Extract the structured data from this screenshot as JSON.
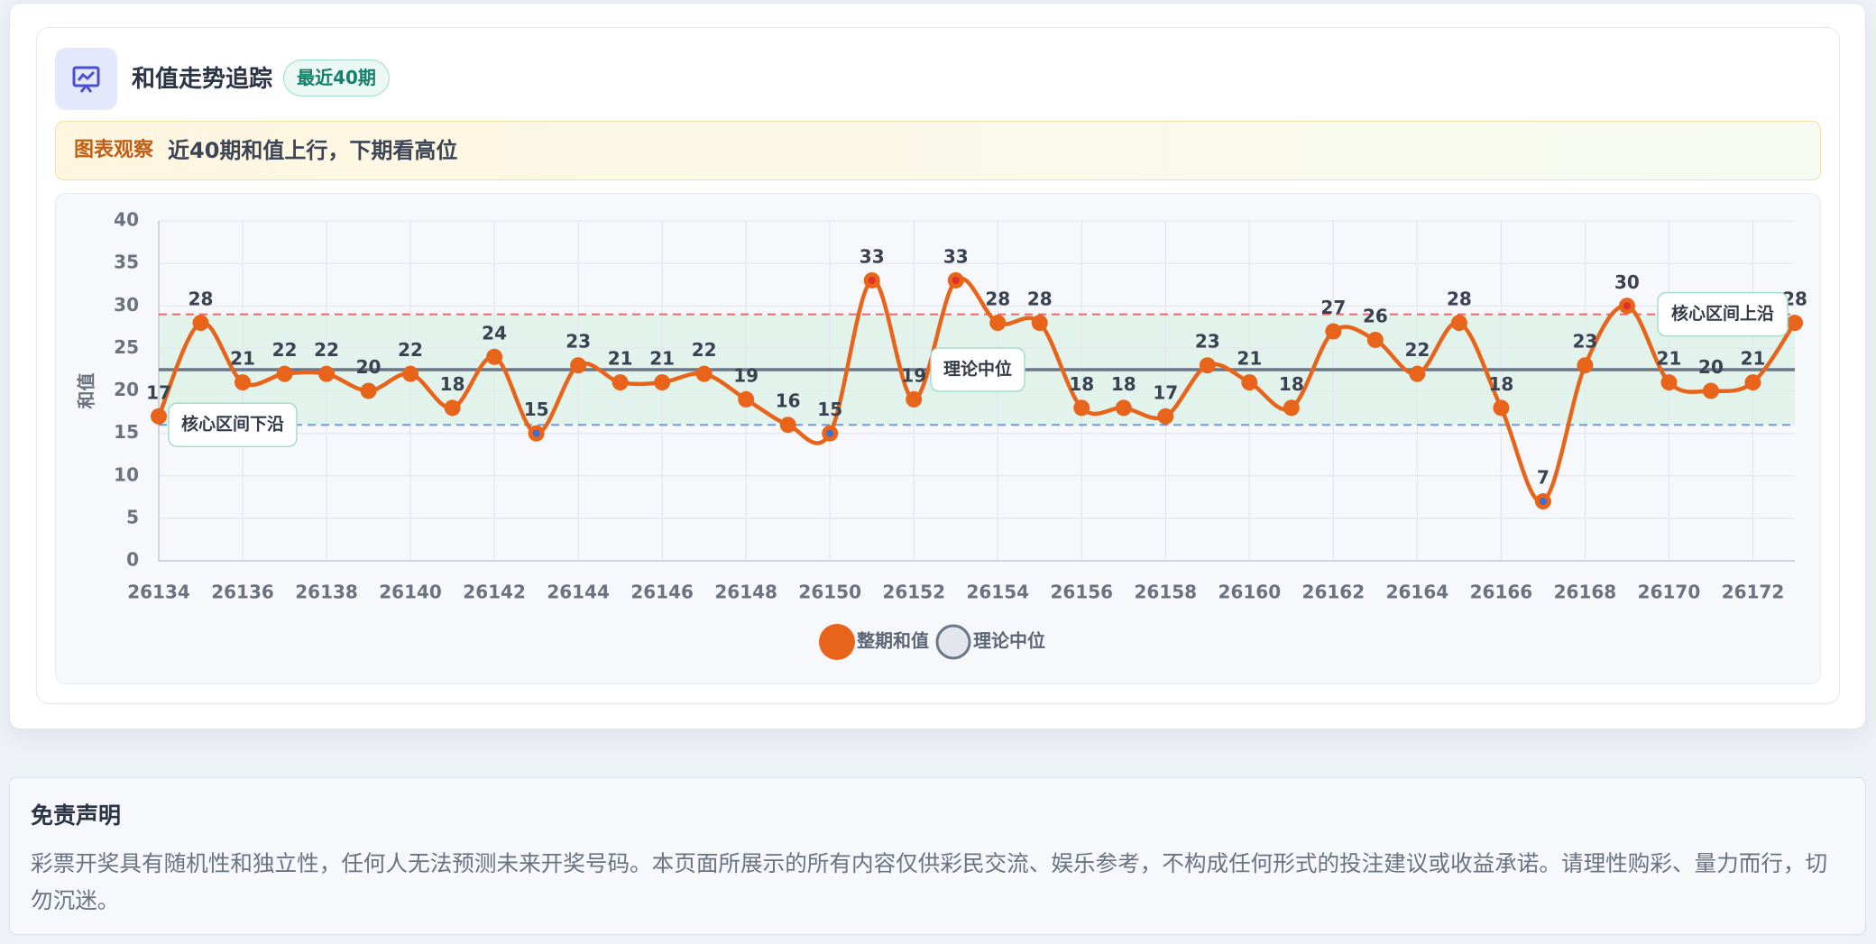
{
  "header": {
    "title": "和值走势追踪",
    "badge": "最近40期"
  },
  "observation": {
    "label": "图表观察",
    "text": "近40期和值上行，下期看高位"
  },
  "chart_data": {
    "type": "line",
    "x": [
      26134,
      26135,
      26136,
      26137,
      26138,
      26139,
      26140,
      26141,
      26142,
      26143,
      26144,
      26145,
      26146,
      26147,
      26148,
      26149,
      26150,
      26151,
      26152,
      26153,
      26154,
      26155,
      26156,
      26157,
      26158,
      26159,
      26160,
      26161,
      26162,
      26163,
      26164,
      26165,
      26166,
      26167,
      26168,
      26169,
      26170,
      26171,
      26172,
      26173
    ],
    "series": [
      {
        "name": "整期和值",
        "color": "#e8641a",
        "values": [
          17,
          28,
          21,
          22,
          22,
          20,
          22,
          18,
          24,
          15,
          23,
          21,
          21,
          22,
          19,
          16,
          15,
          33,
          19,
          33,
          28,
          28,
          18,
          18,
          17,
          23,
          21,
          18,
          27,
          26,
          22,
          28,
          18,
          7,
          23,
          30,
          21,
          20,
          21,
          28
        ]
      }
    ],
    "xlim": [
      26134,
      26173
    ],
    "xticks": [
      26134,
      26136,
      26138,
      26140,
      26142,
      26144,
      26146,
      26148,
      26150,
      26152,
      26154,
      26156,
      26158,
      26160,
      26162,
      26164,
      26166,
      26168,
      26170,
      26172
    ],
    "ylim": [
      0,
      40
    ],
    "yticks": [
      0,
      5,
      10,
      15,
      20,
      25,
      30,
      35,
      40
    ],
    "ylabel": "和值",
    "grid": true,
    "median": {
      "name": "理论中位",
      "value": 22.5,
      "color": "#6b7689"
    },
    "core_band": {
      "upper": {
        "label": "核心区间上沿",
        "value": 29,
        "color": "#e86a6a"
      },
      "lower": {
        "label": "核心区间下沿",
        "value": 16,
        "color": "#6a9de0"
      },
      "fill": "#e2f3ec"
    },
    "legend": "bottom"
  },
  "disclaimer": {
    "title": "免责声明",
    "text": "彩票开奖具有随机性和独立性，任何人无法预测未来开奖号码。本页面所展示的所有内容仅供彩民交流、娱乐参考，不构成任何形式的投注建议或收益承诺。请理性购彩、量力而行，切勿沉迷。"
  }
}
